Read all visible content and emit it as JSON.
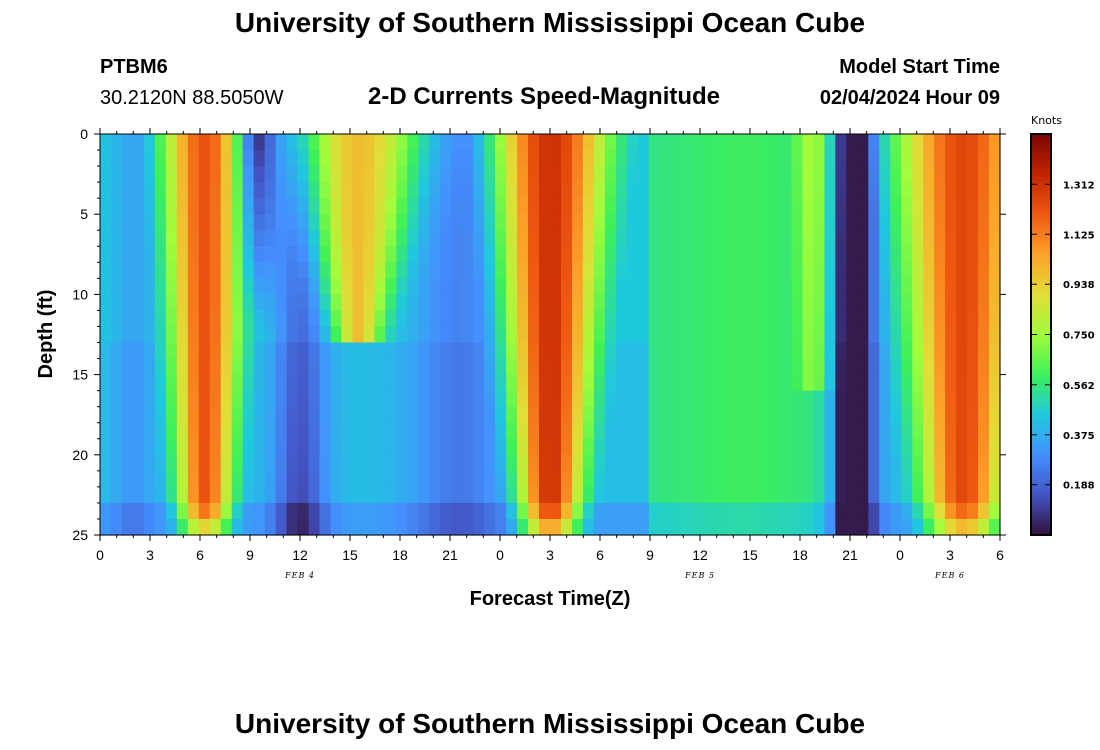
{
  "header": {
    "title_top": "University of Southern Mississippi Ocean Cube",
    "station_id": "PTBM6",
    "coordinates": "30.2120N  88.5050W",
    "plot_title": "2-D Currents Speed-Magnitude",
    "model_start_label": "Model Start Time",
    "model_start_value": "02/04/2024 Hour 09",
    "title_bottom": "University of Southern Mississippi Ocean Cube"
  },
  "colorbar": {
    "unit_label": "Knots",
    "ticks": [
      "1.312",
      "1.125",
      "0.938",
      "0.750",
      "0.562",
      "0.375",
      "0.188"
    ],
    "tick_values": [
      1.312,
      1.125,
      0.938,
      0.75,
      0.562,
      0.375,
      0.188
    ],
    "range": [
      0.0,
      1.5
    ],
    "colormap": [
      "#30123b",
      "#4454c4",
      "#4490fe",
      "#1fc9dd",
      "#3ef058",
      "#a2fc3c",
      "#e1dd37",
      "#fda129",
      "#ef5911",
      "#c22402",
      "#7a0403"
    ]
  },
  "chart_data": {
    "type": "heatmap",
    "xlabel": "Forecast Time(Z)",
    "ylabel": "Depth (ft)",
    "x_unit": "forecast hours from 00Z Feb 4",
    "x_range": [
      0,
      54
    ],
    "x_ticks": [
      0,
      3,
      6,
      9,
      12,
      15,
      18,
      21,
      24,
      27,
      30,
      33,
      36,
      39,
      42,
      45,
      48,
      51,
      54
    ],
    "x_tick_labels": [
      "0",
      "3",
      "6",
      "9",
      "12",
      "15",
      "18",
      "21",
      "0",
      "3",
      "6",
      "9",
      "12",
      "15",
      "18",
      "21",
      "0",
      "3",
      "6"
    ],
    "date_labels": [
      {
        "text": "FEB 4",
        "hour": 12
      },
      {
        "text": "FEB 5",
        "hour": 36
      },
      {
        "text": "FEB 6",
        "hour": 51
      }
    ],
    "y_range": [
      0,
      25
    ],
    "y_ticks": [
      0,
      5,
      10,
      15,
      20,
      25
    ],
    "z_label": "Knots",
    "z_range": [
      0.0,
      1.5
    ],
    "features": [
      {
        "kind": "max",
        "center_hour": 6.3,
        "half_width_hours": [
          2.0,
          1.2
        ],
        "peak_knots": 1.22,
        "depth_range_ft": [
          0,
          24
        ]
      },
      {
        "kind": "max",
        "center_hour": 15.5,
        "half_width_hours": [
          2.6,
          1.0
        ],
        "peak_knots": 0.98,
        "depth_range_ft": [
          0,
          12
        ]
      },
      {
        "kind": "max",
        "center_hour": 27.0,
        "half_width_hours": [
          2.6,
          1.3
        ],
        "peak_knots": 1.32,
        "depth_range_ft": [
          0,
          24
        ]
      },
      {
        "kind": "min",
        "center_hour": 9.3,
        "peak_knots": 0.05,
        "depth_range_ft": [
          0,
          10
        ]
      },
      {
        "kind": "plateau",
        "center_hour": 39.0,
        "peak_knots": 0.57,
        "depth_range_ft": [
          2,
          24
        ]
      },
      {
        "kind": "max",
        "center_hour": 43.0,
        "peak_knots": 0.75,
        "depth_range_ft": [
          0,
          15
        ]
      },
      {
        "kind": "min",
        "center_hour": 45.2,
        "peak_knots": 0.04,
        "depth_range_ft": [
          0,
          25
        ]
      },
      {
        "kind": "max",
        "center_hour": 51.5,
        "peak_knots": 1.25,
        "depth_range_ft": [
          0,
          24
        ]
      }
    ]
  }
}
